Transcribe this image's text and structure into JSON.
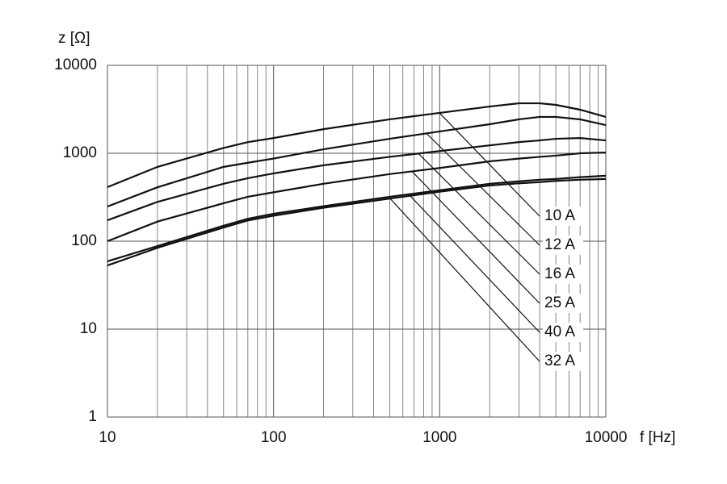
{
  "chart_data": {
    "type": "line",
    "x_label": "f [Hz]",
    "y_label": "z [Ω]",
    "log_x": true,
    "log_y": true,
    "grid": true,
    "xlim": [
      10,
      10000
    ],
    "ylim": [
      1,
      10000
    ],
    "xticks": [
      10,
      100,
      1000,
      10000
    ],
    "yticks": [
      1,
      10,
      100,
      1000,
      10000
    ],
    "x": [
      10,
      20,
      50,
      70,
      100,
      200,
      500,
      1000,
      2000,
      3000,
      4000,
      5000,
      7000,
      10000
    ],
    "series": [
      {
        "name": "10 A",
        "color": "#111111",
        "values": [
          412,
          700,
          1150,
          1340,
          1490,
          1880,
          2430,
          2880,
          3400,
          3700,
          3700,
          3550,
          3130,
          2590
        ]
      },
      {
        "name": "12 A",
        "color": "#111111",
        "values": [
          248,
          410,
          700,
          780,
          870,
          1110,
          1460,
          1770,
          2140,
          2430,
          2590,
          2590,
          2430,
          2090
        ]
      },
      {
        "name": "16 A",
        "color": "#111111",
        "values": [
          173,
          280,
          450,
          520,
          590,
          730,
          910,
          1060,
          1230,
          1340,
          1400,
          1460,
          1490,
          1400
        ]
      },
      {
        "name": "25 A",
        "color": "#111111",
        "values": [
          100,
          167,
          270,
          320,
          360,
          450,
          580,
          680,
          810,
          870,
          910,
          940,
          1000,
          1020
        ]
      },
      {
        "name": "40 A",
        "color": "#111111",
        "values": [
          59,
          88,
          150,
          180,
          205,
          250,
          320,
          380,
          450,
          480,
          500,
          510,
          535,
          555
        ]
      },
      {
        "name": "32 A",
        "color": "#111111",
        "values": [
          53,
          84,
          143,
          172,
          195,
          240,
          305,
          365,
          430,
          455,
          470,
          485,
          500,
          510
        ]
      }
    ]
  }
}
